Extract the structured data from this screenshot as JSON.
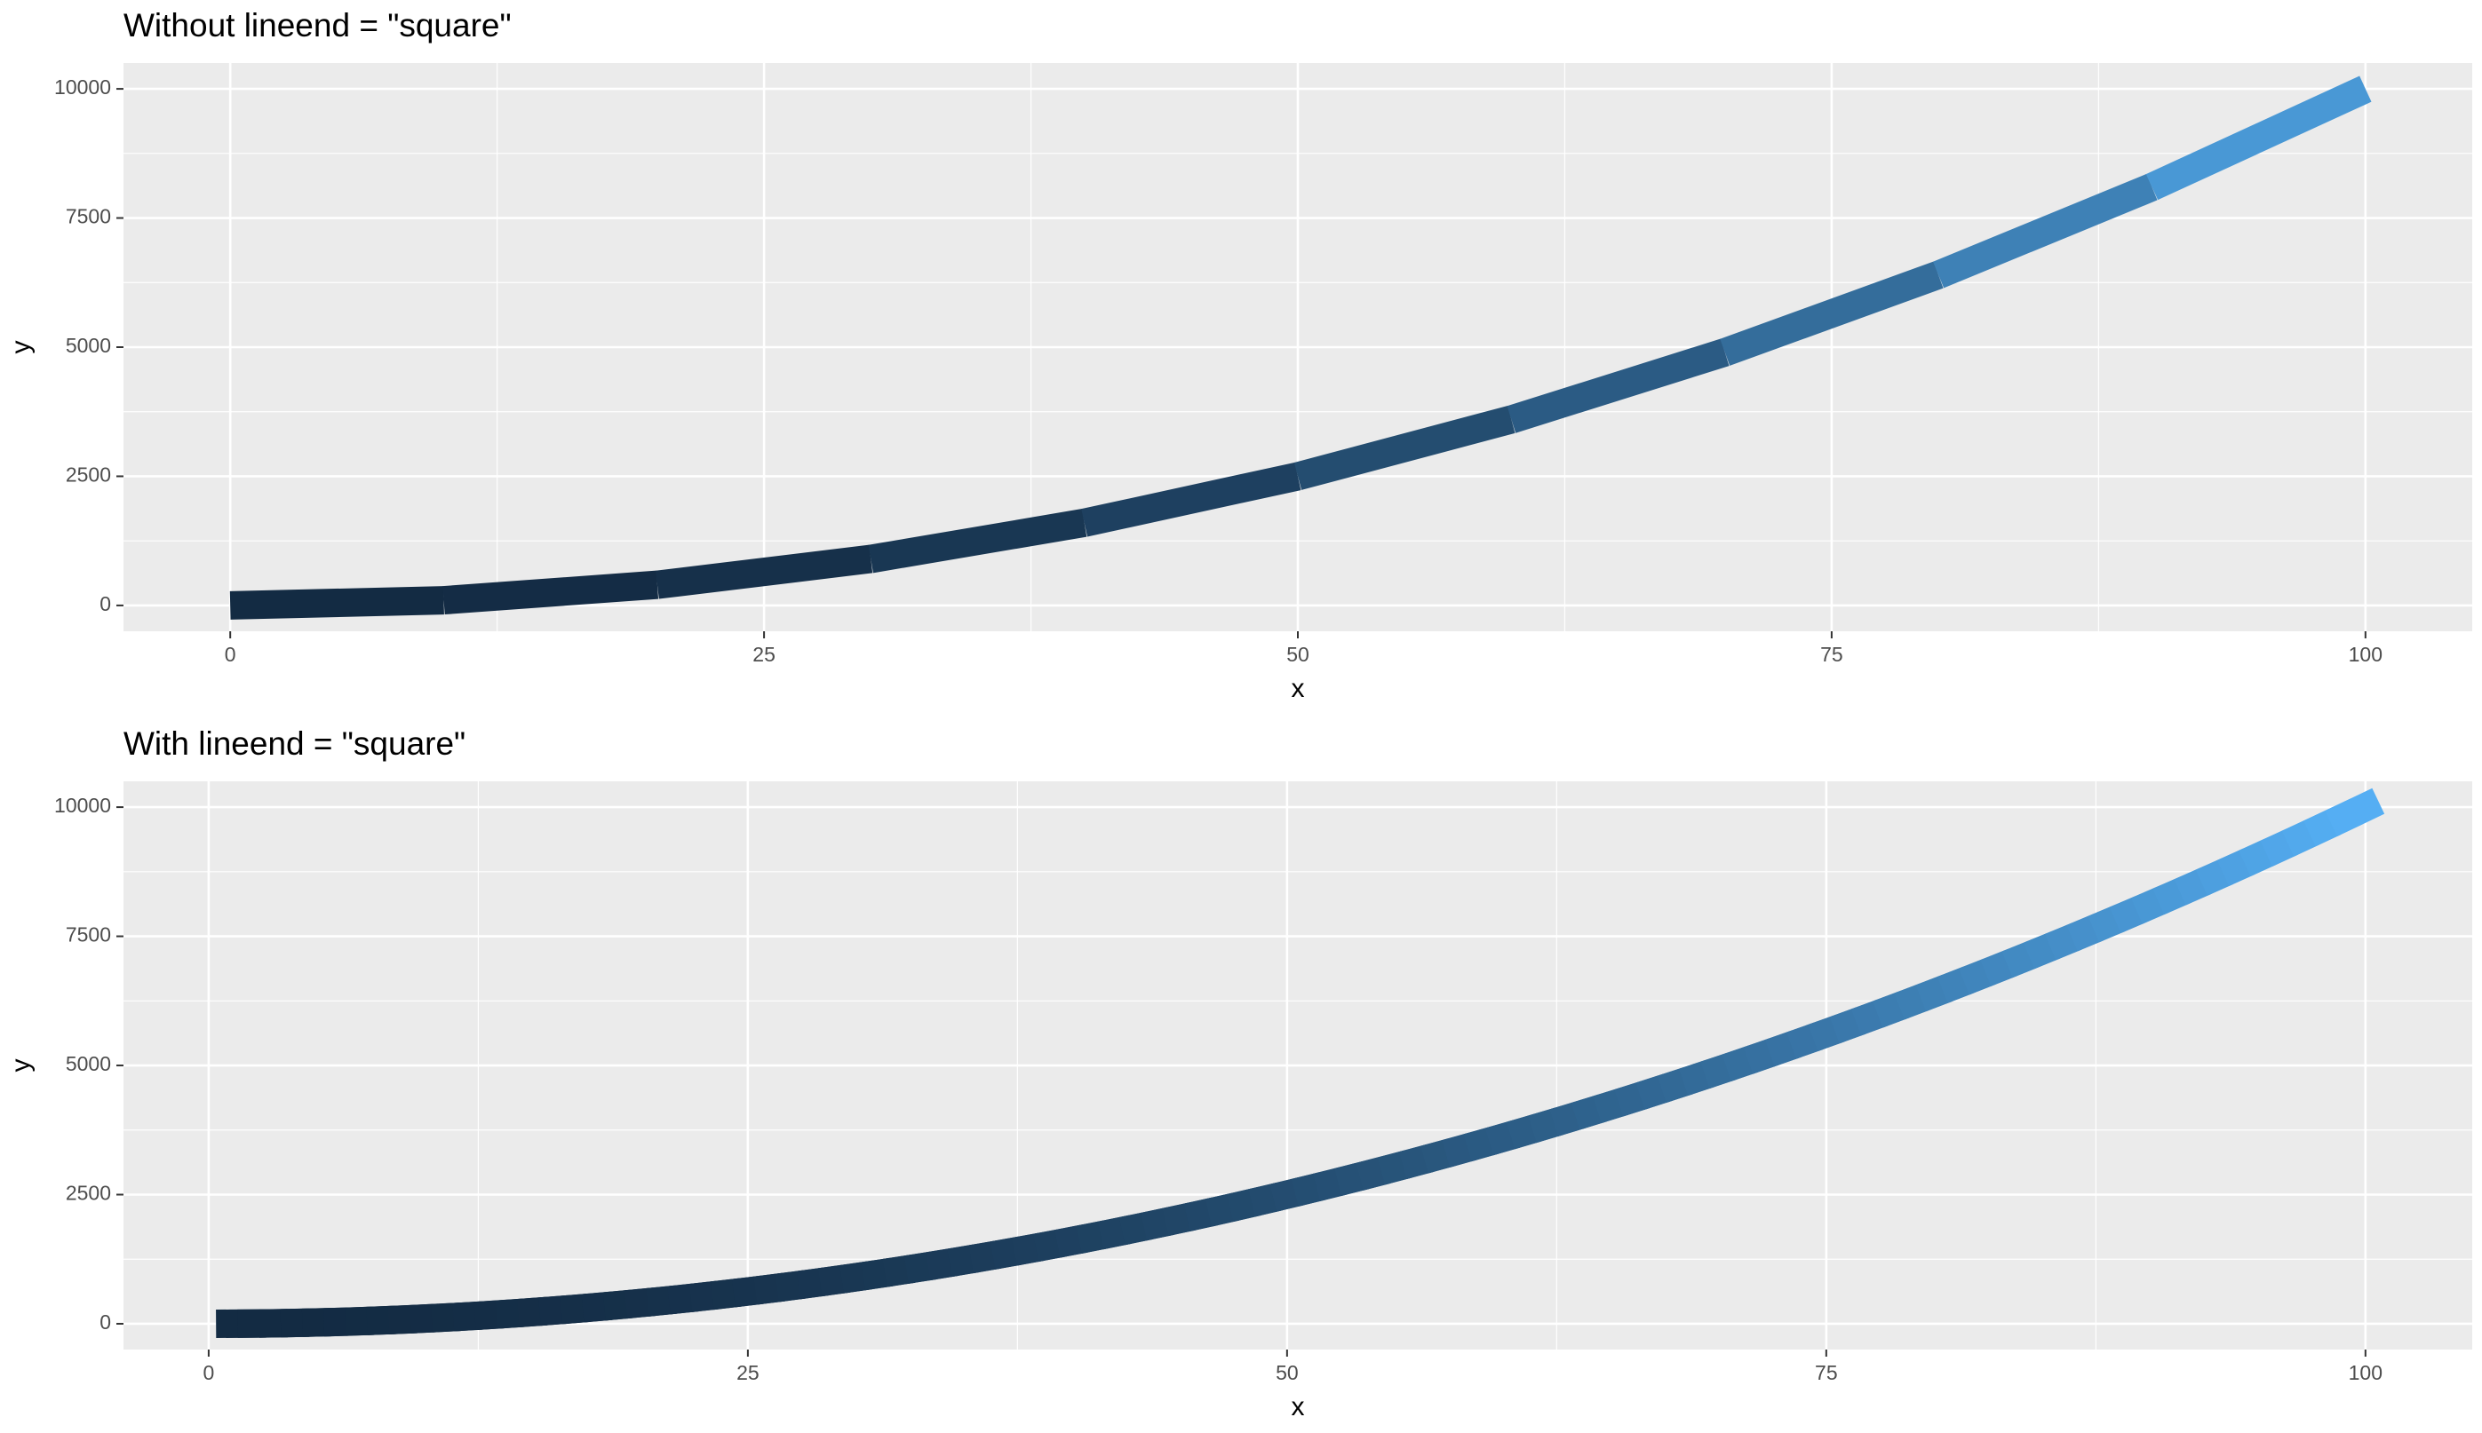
{
  "chart_data": [
    {
      "type": "line",
      "title": "Without lineend = \"square\"",
      "xlabel": "x",
      "ylabel": "y",
      "lineend": "butt",
      "x": [
        0,
        10,
        20,
        30,
        40,
        50,
        60,
        70,
        80,
        90,
        100
      ],
      "values": [
        0,
        100,
        400,
        900,
        1600,
        2500,
        3600,
        4900,
        6400,
        8100,
        10000
      ],
      "color_low": "#132B43",
      "color_high": "#56B1F7",
      "color_limits": [
        0,
        10000
      ],
      "xlim": [
        -5,
        105
      ],
      "ylim": [
        -500,
        10500
      ],
      "xticks": [
        0,
        25,
        50,
        75,
        100
      ],
      "yticks": [
        0,
        2500,
        5000,
        7500,
        10000
      ],
      "xminor": [
        12.5,
        37.5,
        62.5,
        87.5
      ],
      "yminor": [
        1250,
        3750,
        6250,
        8750
      ],
      "grid": true
    },
    {
      "type": "line",
      "title": "With lineend = \"square\"",
      "xlabel": "x",
      "ylabel": "y",
      "lineend": "square",
      "x": [
        1,
        2,
        3,
        4,
        5,
        6,
        7,
        8,
        9,
        10,
        11,
        12,
        13,
        14,
        15,
        16,
        17,
        18,
        19,
        20,
        21,
        22,
        23,
        24,
        25,
        26,
        27,
        28,
        29,
        30,
        31,
        32,
        33,
        34,
        35,
        36,
        37,
        38,
        39,
        40,
        41,
        42,
        43,
        44,
        45,
        46,
        47,
        48,
        49,
        50,
        51,
        52,
        53,
        54,
        55,
        56,
        57,
        58,
        59,
        60,
        61,
        62,
        63,
        64,
        65,
        66,
        67,
        68,
        69,
        70,
        71,
        72,
        73,
        74,
        75,
        76,
        77,
        78,
        79,
        80,
        81,
        82,
        83,
        84,
        85,
        86,
        87,
        88,
        89,
        90,
        91,
        92,
        93,
        94,
        95,
        96,
        97,
        98,
        99,
        100
      ],
      "values": [
        1,
        4,
        9,
        16,
        25,
        36,
        49,
        64,
        81,
        100,
        121,
        144,
        169,
        196,
        225,
        256,
        289,
        324,
        361,
        400,
        441,
        484,
        529,
        576,
        625,
        676,
        729,
        784,
        841,
        900,
        961,
        1024,
        1089,
        1156,
        1225,
        1296,
        1369,
        1444,
        1521,
        1600,
        1681,
        1764,
        1849,
        1936,
        2025,
        2116,
        2209,
        2304,
        2401,
        2500,
        2601,
        2704,
        2809,
        2916,
        3025,
        3136,
        3249,
        3364,
        3481,
        3600,
        3721,
        3844,
        3969,
        4096,
        4225,
        4356,
        4489,
        4624,
        4761,
        4900,
        5041,
        5184,
        5329,
        5476,
        5625,
        5776,
        5929,
        6084,
        6241,
        6400,
        6561,
        6724,
        6889,
        7056,
        7225,
        7396,
        7569,
        7744,
        7921,
        8100,
        8281,
        8464,
        8649,
        8836,
        9025,
        9216,
        9409,
        9604,
        9801,
        10000
      ],
      "color_low": "#132B43",
      "color_high": "#56B1F7",
      "color_limits": [
        1,
        10000
      ],
      "xlim": [
        -3.95,
        104.95
      ],
      "ylim": [
        -499,
        10500
      ],
      "xticks": [
        0,
        25,
        50,
        75,
        100
      ],
      "yticks": [
        0,
        2500,
        5000,
        7500,
        10000
      ],
      "xminor": [
        12.5,
        37.5,
        62.5,
        87.5
      ],
      "yminor": [
        1250,
        3750,
        6250,
        8750
      ],
      "grid": true
    }
  ]
}
